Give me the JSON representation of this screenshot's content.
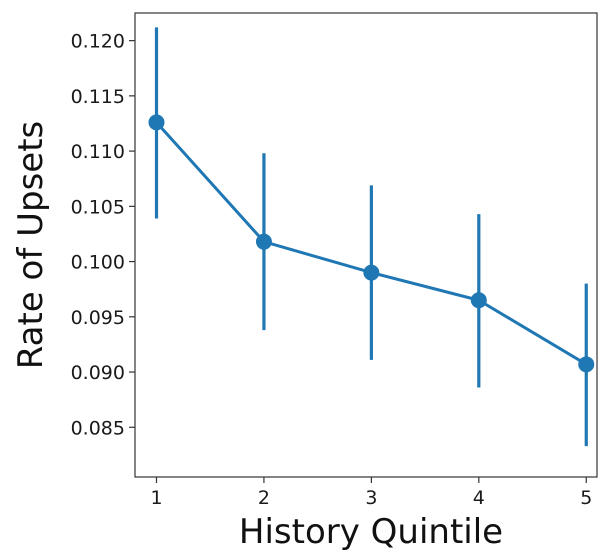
{
  "chart_data": {
    "type": "line",
    "title": "",
    "xlabel": "History Quintile",
    "ylabel": "Rate of Upsets",
    "x": [
      1,
      2,
      3,
      4,
      5
    ],
    "x_tick_labels": [
      "1",
      "2",
      "3",
      "4",
      "5"
    ],
    "xlim": [
      0.8,
      5.1
    ],
    "y_ticks": [
      0.085,
      0.09,
      0.095,
      0.1,
      0.105,
      0.11,
      0.115,
      0.12
    ],
    "y_tick_labels": [
      "0.085",
      "0.090",
      "0.095",
      "0.100",
      "0.105",
      "0.110",
      "0.115",
      "0.120"
    ],
    "ylim": [
      0.0805,
      0.1225
    ],
    "grid": false,
    "legend": "none",
    "series": [
      {
        "values": [
          0.1126,
          0.1018,
          0.099,
          0.0965,
          0.0907
        ],
        "error_low": [
          0.1039,
          0.0938,
          0.0911,
          0.0886,
          0.0833
        ],
        "error_high": [
          0.1212,
          0.1098,
          0.1069,
          0.1043,
          0.098
        ],
        "color": "#1f77b4"
      }
    ]
  }
}
